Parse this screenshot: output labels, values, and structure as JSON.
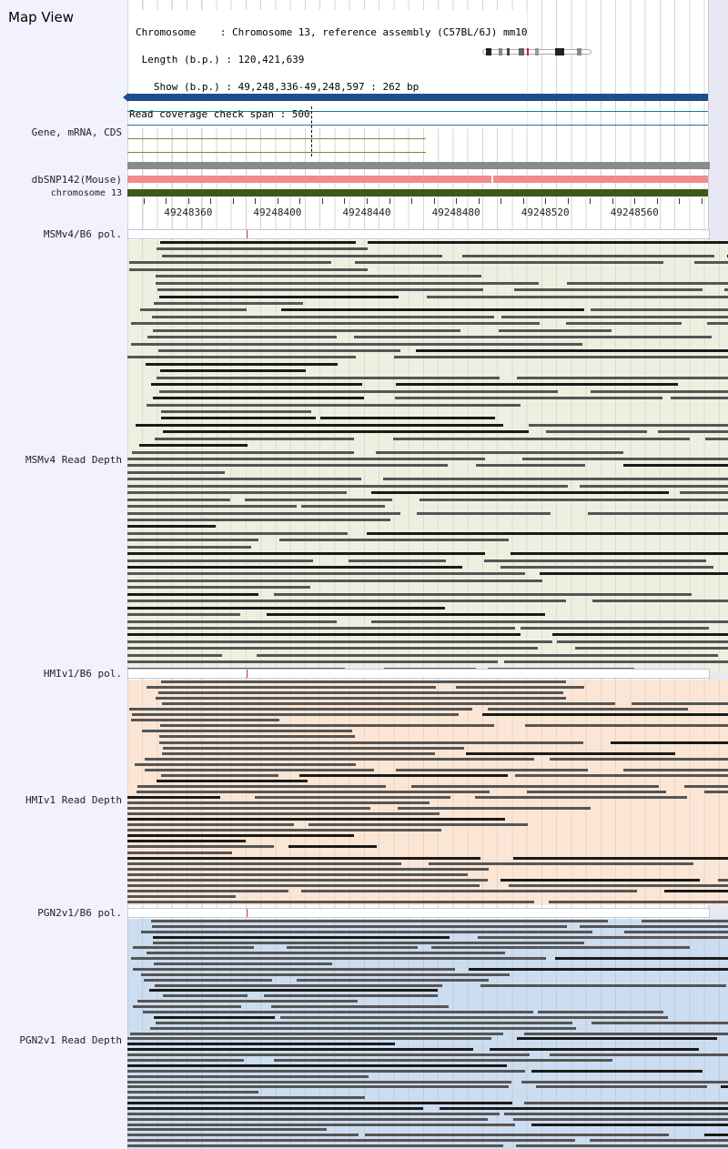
{
  "title": "Map View",
  "info": {
    "chromosome": "Chromosome    : Chromosome 13, reference assembly (C57BL/6J) mm10",
    "length": " Length (b.p.) : 120,421,639",
    "show": "   Show (b.p.) : 49,248,336-49,248,597 : 262 bp",
    "coverage": "Read coverage check span : 500"
  },
  "tracks": {
    "gene": "Gene, mRNA, CDS",
    "dbsnp": "dbSNP142(Mouse)",
    "chrom": "chromosome 13"
  },
  "axis": {
    "ticks": [
      "49248360",
      "49248400",
      "49248440",
      "49248480",
      "49248520",
      "49248560"
    ],
    "positions": [
      49248360,
      49248400,
      49248440,
      49248480,
      49248520,
      49248560
    ],
    "range": [
      49248336,
      49248597
    ]
  },
  "strains": [
    {
      "pol_label": "MSMv4/B6 pol.",
      "depth_label": "MSMv4 Read Depth",
      "bg": "#ecf0e0",
      "rows": 64,
      "seed": 11
    },
    {
      "pol_label": "HMIv1/B6 pol.",
      "depth_label": "HMIv1 Read Depth",
      "bg": "#fbe6d6",
      "rows": 41,
      "seed": 23
    },
    {
      "pol_label": "PGN2v1/B6 pol.",
      "depth_label": "PGN2v1 Read Depth",
      "bg": "#cdddf0",
      "rows": 43,
      "seed": 37
    }
  ],
  "colors": {
    "gene_main": "#1f4e8c",
    "gene_sub": "#1e7a8a",
    "gene_cds": "#7a8a3a",
    "snp": "#f08c8c",
    "chrom": "#3b5a1a",
    "grey": "#8a8a8a",
    "read": "#555555",
    "read_dark": "#1a1a1a"
  }
}
